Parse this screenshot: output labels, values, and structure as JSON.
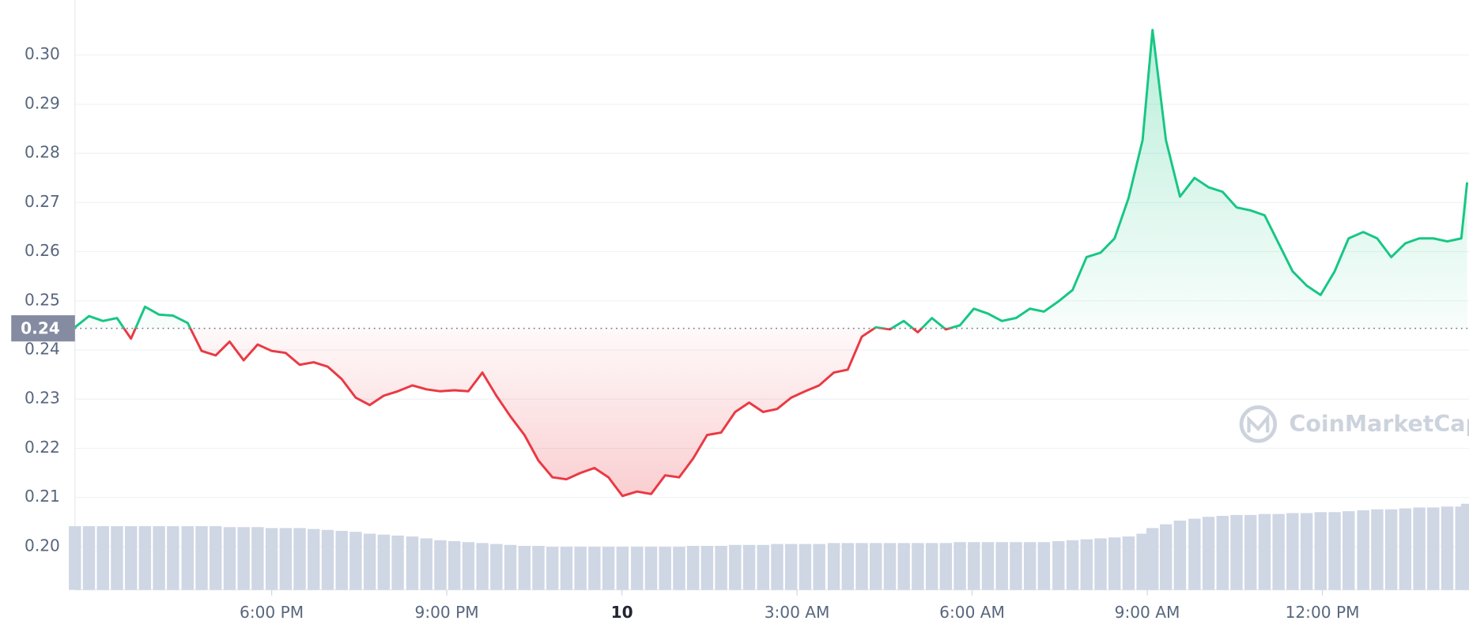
{
  "chart_data": {
    "type": "line",
    "x": [
      14.63,
      14.87,
      15.11,
      15.35,
      15.59,
      15.83,
      16.07,
      16.31,
      16.56,
      16.8,
      17.04,
      17.28,
      17.52,
      17.76,
      18.0,
      18.24,
      18.48,
      18.72,
      18.96,
      19.2,
      19.44,
      19.68,
      19.92,
      20.16,
      20.41,
      20.65,
      20.89,
      21.13,
      21.37,
      21.61,
      21.85,
      22.09,
      22.33,
      22.57,
      22.81,
      23.05,
      23.29,
      23.53,
      23.77,
      24.01,
      24.26,
      24.5,
      24.74,
      24.98,
      25.22,
      25.46,
      25.7,
      25.94,
      26.18,
      26.42,
      26.66,
      26.9,
      27.14,
      27.38,
      27.63,
      27.87,
      28.11,
      28.35,
      28.59,
      28.83,
      29.07,
      29.31,
      29.55,
      29.79,
      30.03,
      30.27,
      30.51,
      30.75,
      30.99,
      31.23,
      31.48,
      31.72,
      31.96,
      32.2,
      32.44,
      32.68,
      32.92,
      33.09,
      33.32,
      33.56,
      33.81,
      34.05,
      34.29,
      34.53,
      34.77,
      35.01,
      35.25,
      35.49,
      35.73,
      35.97,
      36.21,
      36.45,
      36.7,
      36.94,
      37.18,
      37.42,
      37.66,
      37.9,
      38.14,
      38.38,
      38.48
    ],
    "values": [
      0.2446,
      0.2469,
      0.2459,
      0.2465,
      0.2423,
      0.2488,
      0.2472,
      0.247,
      0.2455,
      0.2398,
      0.2389,
      0.2417,
      0.2379,
      0.2411,
      0.2398,
      0.2394,
      0.237,
      0.2375,
      0.2366,
      0.2341,
      0.2303,
      0.2288,
      0.2307,
      0.2316,
      0.2328,
      0.232,
      0.2316,
      0.2318,
      0.2316,
      0.2354,
      0.2307,
      0.2265,
      0.2227,
      0.2175,
      0.2141,
      0.2137,
      0.215,
      0.216,
      0.2141,
      0.2103,
      0.2112,
      0.2107,
      0.2145,
      0.2141,
      0.2179,
      0.2227,
      0.2232,
      0.2274,
      0.2293,
      0.2274,
      0.228,
      0.2303,
      0.2316,
      0.2328,
      0.2354,
      0.236,
      0.2427,
      0.2446,
      0.2442,
      0.2459,
      0.2436,
      0.2465,
      0.2442,
      0.245,
      0.2484,
      0.2474,
      0.2459,
      0.2465,
      0.2484,
      0.2478,
      0.2499,
      0.2522,
      0.2589,
      0.2598,
      0.2627,
      0.2709,
      0.2827,
      0.3051,
      0.2827,
      0.2712,
      0.275,
      0.2731,
      0.2722,
      0.269,
      0.2684,
      0.2674,
      0.2617,
      0.256,
      0.2531,
      0.2512,
      0.256,
      0.2627,
      0.264,
      0.2627,
      0.2589,
      0.2617,
      0.2627,
      0.2627,
      0.2621,
      0.2627,
      0.2741
    ],
    "volume": [
      68,
      68,
      68,
      68,
      68,
      68,
      68,
      68,
      68,
      68,
      68,
      67,
      67,
      67,
      66,
      66,
      66,
      65,
      64,
      63,
      62,
      60,
      59,
      58,
      57,
      55,
      53,
      52,
      51,
      50,
      49,
      48,
      47,
      47,
      46,
      46,
      46,
      46,
      46,
      46,
      46,
      46,
      46,
      46,
      47,
      47,
      47,
      48,
      48,
      48,
      49,
      49,
      49,
      49,
      50,
      50,
      50,
      50,
      50,
      50,
      50,
      50,
      50,
      51,
      51,
      51,
      51,
      51,
      51,
      51,
      52,
      53,
      54,
      55,
      56,
      57,
      60,
      66,
      70,
      74,
      76,
      78,
      79,
      80,
      80,
      81,
      81,
      82,
      82,
      83,
      83,
      84,
      85,
      86,
      86,
      87,
      88,
      88,
      89,
      89,
      92
    ],
    "baseline": {
      "value": 0.2444,
      "label": "0.24"
    },
    "up_color": "#16c784",
    "down_color": "#ea3943",
    "volume_color": "#cfd6e4",
    "xlim": [
      14.63,
      38.48
    ],
    "ylim": [
      0.1912,
      0.3112
    ],
    "xticks": [
      {
        "value": 18,
        "label": "6:00 PM"
      },
      {
        "value": 21,
        "label": "9:00 PM"
      },
      {
        "value": 24,
        "label": "10",
        "emphasis": true
      },
      {
        "value": 27,
        "label": "3:00 AM"
      },
      {
        "value": 30,
        "label": "6:00 AM"
      },
      {
        "value": 33,
        "label": "9:00 AM"
      },
      {
        "value": 36,
        "label": "12:00 PM"
      }
    ],
    "yticks": [
      {
        "value": 0.2,
        "label": "0.20"
      },
      0.21,
      0.22,
      0.23,
      0.24,
      0.25,
      0.26,
      0.27,
      0.28,
      0.29,
      {
        "value": 0.3,
        "label": "0.30"
      }
    ],
    "grid": true,
    "watermark": "CoinMarketCap"
  }
}
